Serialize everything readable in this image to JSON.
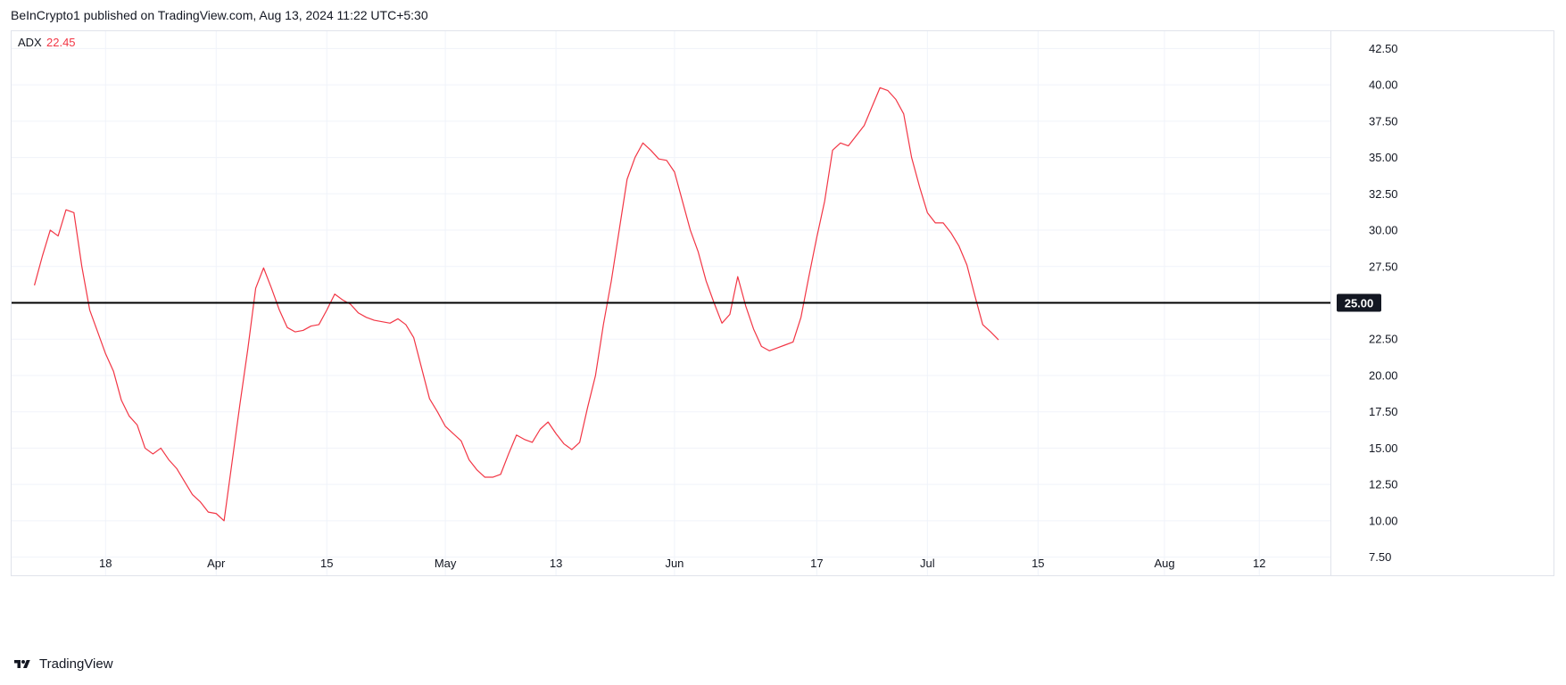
{
  "header": {
    "published": "BeInCrypto1 published on TradingView.com, Aug 13, 2024 11:22 UTC+5:30"
  },
  "legend": {
    "name": "ADX",
    "value": "22.45"
  },
  "footer": {
    "brand": "TradingView"
  },
  "colors": {
    "series": "#f23645",
    "level_line": "#000000",
    "grid": "#f0f3fa",
    "axis_text": "#131722",
    "badge_bg": "#131722",
    "badge_text": "#ffffff"
  },
  "chart_data": {
    "type": "line",
    "title": "",
    "xlabel": "",
    "ylabel": "",
    "ylim": [
      6.25,
      43.75
    ],
    "y_ticks": [
      "7.50",
      "10.00",
      "12.50",
      "15.00",
      "17.50",
      "20.00",
      "22.50",
      "25.00",
      "27.50",
      "30.00",
      "32.50",
      "35.00",
      "37.50",
      "40.00",
      "42.50"
    ],
    "x_ticks": [
      "18",
      "Apr",
      "15",
      "May",
      "13",
      "Jun",
      "17",
      "Jul",
      "15",
      "Aug",
      "12"
    ],
    "x_tick_positions": [
      9,
      23,
      37,
      52,
      66,
      81,
      99,
      113,
      127,
      143,
      155
    ],
    "x_range": [
      -3,
      164
    ],
    "grid": true,
    "legend_position": "top-left",
    "horizontal_line": {
      "value": 25.0,
      "label": "25.00"
    },
    "series": [
      {
        "name": "ADX",
        "values": [
          26.2,
          28.2,
          30.0,
          29.6,
          31.4,
          31.2,
          27.5,
          24.5,
          23.0,
          21.5,
          20.3,
          18.3,
          17.2,
          16.6,
          15.0,
          14.6,
          15.0,
          14.2,
          13.6,
          12.7,
          11.8,
          11.3,
          10.6,
          10.5,
          10.0,
          14.0,
          18.0,
          21.8,
          26.0,
          27.4,
          26.0,
          24.5,
          23.3,
          23.0,
          23.1,
          23.4,
          23.5,
          24.5,
          25.6,
          25.2,
          24.9,
          24.3,
          24.0,
          23.8,
          23.7,
          23.6,
          23.9,
          23.5,
          22.6,
          20.5,
          18.4,
          17.5,
          16.5,
          16.0,
          15.5,
          14.2,
          13.5,
          13.0,
          13.0,
          13.2,
          14.6,
          15.9,
          15.6,
          15.4,
          16.3,
          16.8,
          16.0,
          15.3,
          14.9,
          15.4,
          17.8,
          20.0,
          23.5,
          26.5,
          30.0,
          33.5,
          35.0,
          36.0,
          35.5,
          34.9,
          34.8,
          34.0,
          32.0,
          30.0,
          28.5,
          26.5,
          25.0,
          23.6,
          24.2,
          26.8,
          24.8,
          23.2,
          22.0,
          21.7,
          21.9,
          22.1,
          22.3,
          24.0,
          26.8,
          29.5,
          32.0,
          35.5,
          36.0,
          35.8,
          36.5,
          37.2,
          38.5,
          39.8,
          39.6,
          39.0,
          38.0,
          35.0,
          33.0,
          31.2,
          30.5,
          30.5,
          29.8,
          28.9,
          27.6,
          25.5,
          23.5,
          23.0,
          22.45
        ]
      }
    ]
  }
}
